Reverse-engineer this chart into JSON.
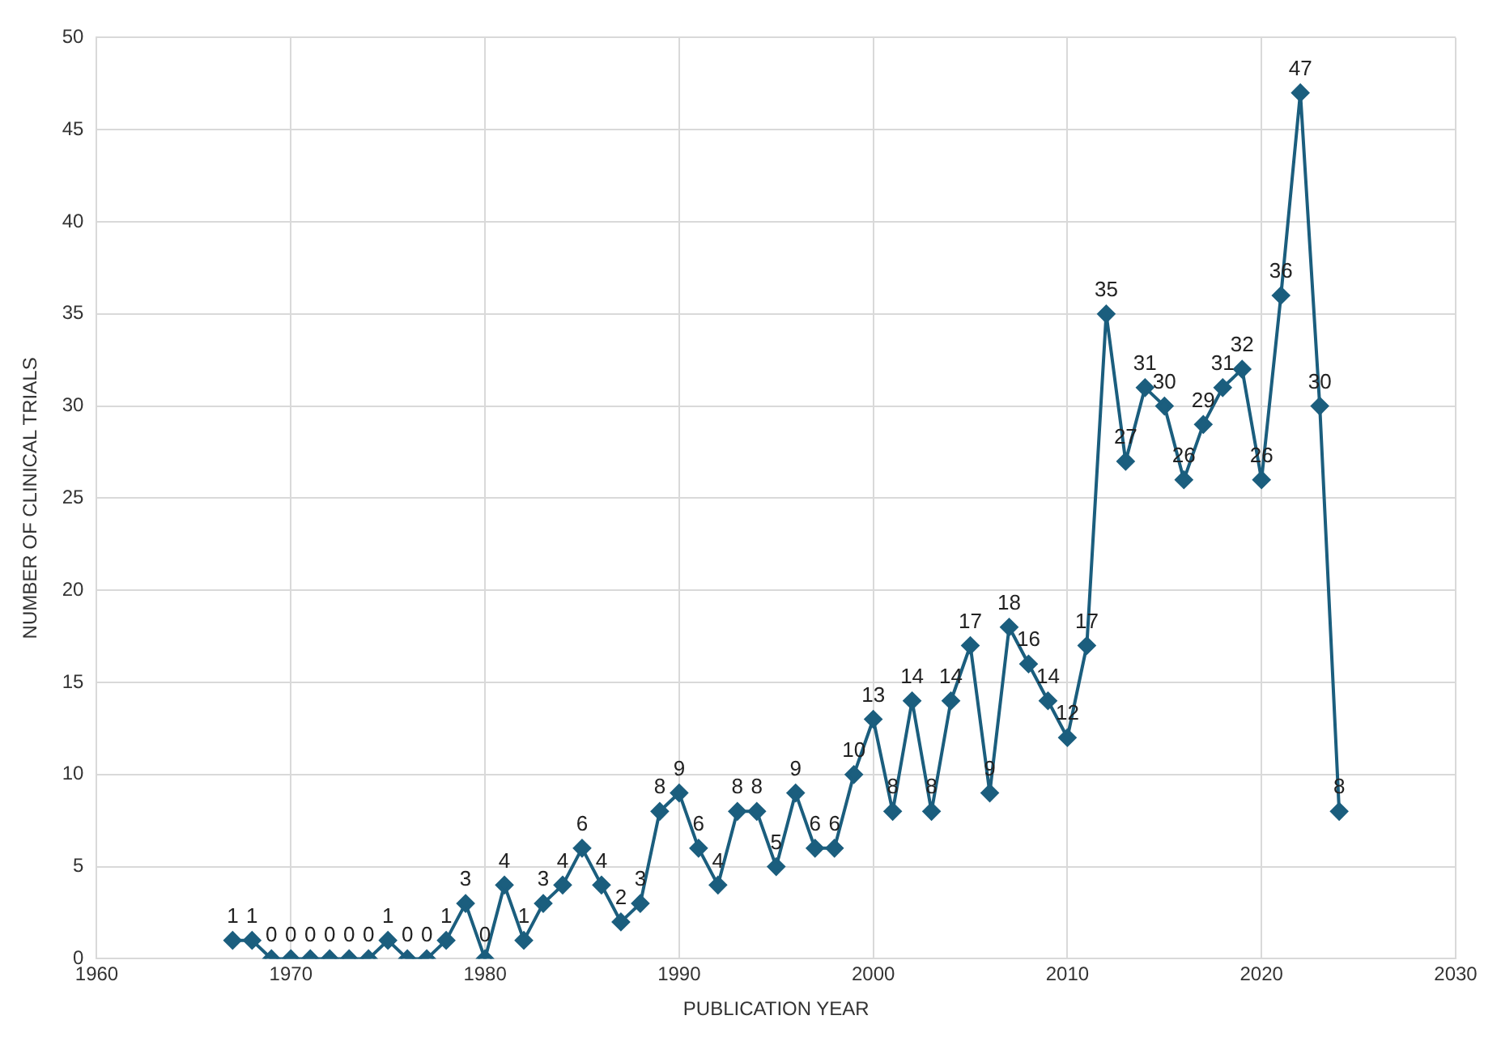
{
  "chart_data": {
    "type": "line",
    "xlabel": "PUBLICATION YEAR",
    "ylabel": "NUMBER OF CLINICAL TRIALS",
    "x": [
      1967,
      1968,
      1969,
      1970,
      1971,
      1972,
      1973,
      1974,
      1975,
      1976,
      1977,
      1978,
      1979,
      1980,
      1981,
      1982,
      1983,
      1984,
      1985,
      1986,
      1987,
      1988,
      1989,
      1990,
      1991,
      1992,
      1993,
      1994,
      1995,
      1996,
      1997,
      1998,
      1999,
      2000,
      2001,
      2002,
      2003,
      2004,
      2005,
      2006,
      2007,
      2008,
      2009,
      2010,
      2011,
      2012,
      2013,
      2014,
      2015,
      2016,
      2017,
      2018,
      2019,
      2020,
      2021,
      2022,
      2023,
      2024
    ],
    "series": [
      {
        "color": "#1b5e7e",
        "values": [
          1,
          1,
          0,
          0,
          0,
          0,
          0,
          0,
          1,
          0,
          0,
          1,
          3,
          0,
          4,
          1,
          3,
          4,
          6,
          4,
          2,
          3,
          8,
          9,
          6,
          4,
          8,
          8,
          5,
          9,
          6,
          6,
          10,
          13,
          8,
          14,
          8,
          14,
          17,
          9,
          18,
          16,
          14,
          12,
          17,
          35,
          27,
          31,
          30,
          26,
          29,
          31,
          32,
          26,
          36,
          47,
          30,
          8
        ]
      }
    ],
    "xlim": [
      1960,
      2030
    ],
    "xticks": [
      1960,
      1970,
      1980,
      1990,
      2000,
      2010,
      2020,
      2030
    ],
    "ylim": [
      0,
      50
    ],
    "yticks": [
      0,
      5,
      10,
      15,
      20,
      25,
      30,
      35,
      40,
      45,
      50
    ],
    "grid": true,
    "legend": false,
    "marker": "diamond",
    "line_style": "solid",
    "data_labels": true
  }
}
